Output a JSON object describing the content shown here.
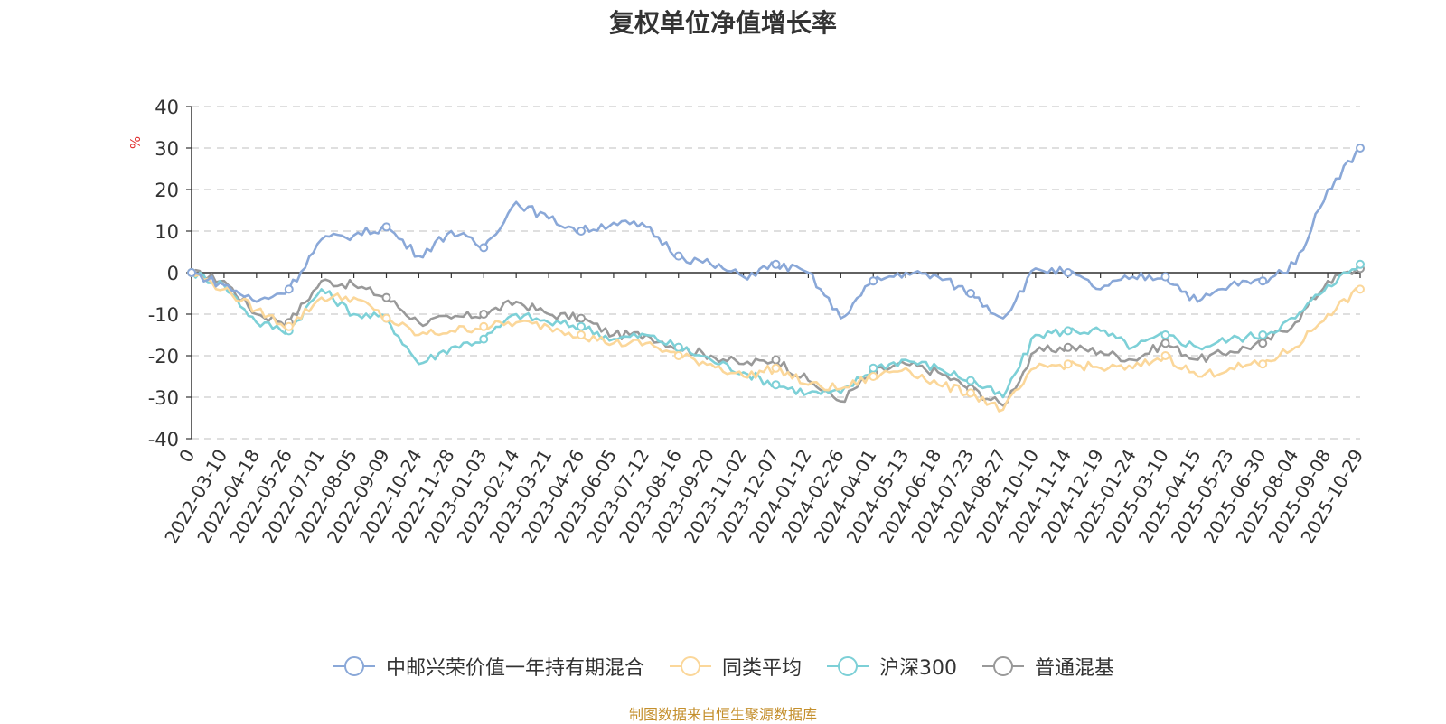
{
  "chart_data": {
    "type": "line",
    "title": "复权单位净值增长率",
    "ylabel": "%",
    "xlabel": "",
    "ylim": [
      -40,
      40
    ],
    "yticks": [
      -40,
      -30,
      -20,
      -10,
      0,
      10,
      20,
      30,
      40
    ],
    "grid": true,
    "legend_position": "bottom-center",
    "x_tick_labels": [
      "0",
      "2022-03-10",
      "2022-04-18",
      "2022-05-26",
      "2022-07-01",
      "2022-08-05",
      "2022-09-09",
      "2022-10-24",
      "2022-11-28",
      "2023-01-03",
      "2023-02-14",
      "2023-03-21",
      "2023-04-26",
      "2023-06-05",
      "2023-07-12",
      "2023-08-16",
      "2023-09-20",
      "2023-11-02",
      "2023-12-07",
      "2024-01-12",
      "2024-02-26",
      "2024-04-01",
      "2024-05-13",
      "2024-06-18",
      "2024-07-23",
      "2024-08-27",
      "2024-10-10",
      "2024-11-14",
      "2024-12-19",
      "2025-01-24",
      "2025-03-10",
      "2025-04-15",
      "2025-05-23",
      "2025-06-30",
      "2025-08-04",
      "2025-09-08",
      "2025-10-29"
    ],
    "series": [
      {
        "name": "中邮兴荣价值一年持有期混合",
        "color": "#8aa8d8",
        "values": [
          0,
          -3,
          -7,
          -4,
          8,
          9,
          11,
          4,
          10,
          6,
          17,
          13,
          10,
          12,
          11,
          4,
          2,
          -1,
          2,
          0,
          -11,
          -2,
          0,
          -1,
          -5,
          -11,
          1,
          0,
          -4,
          -1,
          -1,
          -7,
          -3,
          -2,
          2,
          20,
          30
        ]
      },
      {
        "name": "同类平均",
        "color": "#fbd79a",
        "values": [
          0,
          -4,
          -9,
          -13,
          -6,
          -6,
          -11,
          -15,
          -14,
          -13,
          -12,
          -13,
          -15,
          -17,
          -17,
          -20,
          -22,
          -25,
          -23,
          -27,
          -28,
          -25,
          -23,
          -27,
          -29,
          -33,
          -23,
          -22,
          -23,
          -23,
          -20,
          -25,
          -23,
          -22,
          -18,
          -10,
          -4
        ]
      },
      {
        "name": "沪深300",
        "color": "#7dd0d7",
        "values": [
          0,
          -3,
          -12,
          -14,
          -4,
          -10,
          -11,
          -22,
          -18,
          -16,
          -10,
          -12,
          -13,
          -16,
          -15,
          -18,
          -21,
          -24,
          -27,
          -29,
          -29,
          -23,
          -21,
          -23,
          -26,
          -30,
          -15,
          -14,
          -14,
          -18,
          -15,
          -18,
          -16,
          -15,
          -11,
          -3,
          2
        ]
      },
      {
        "name": "普通混基",
        "color": "#999999",
        "values": [
          0,
          -2,
          -10,
          -12,
          -2,
          -3,
          -6,
          -12,
          -11,
          -10,
          -7,
          -10,
          -11,
          -15,
          -15,
          -18,
          -20,
          -22,
          -21,
          -26,
          -31,
          -24,
          -22,
          -24,
          -28,
          -32,
          -19,
          -18,
          -19,
          -21,
          -17,
          -21,
          -19,
          -17,
          -12,
          -2,
          1
        ]
      }
    ]
  },
  "source_text": "制图数据来自恒生聚源数据库"
}
